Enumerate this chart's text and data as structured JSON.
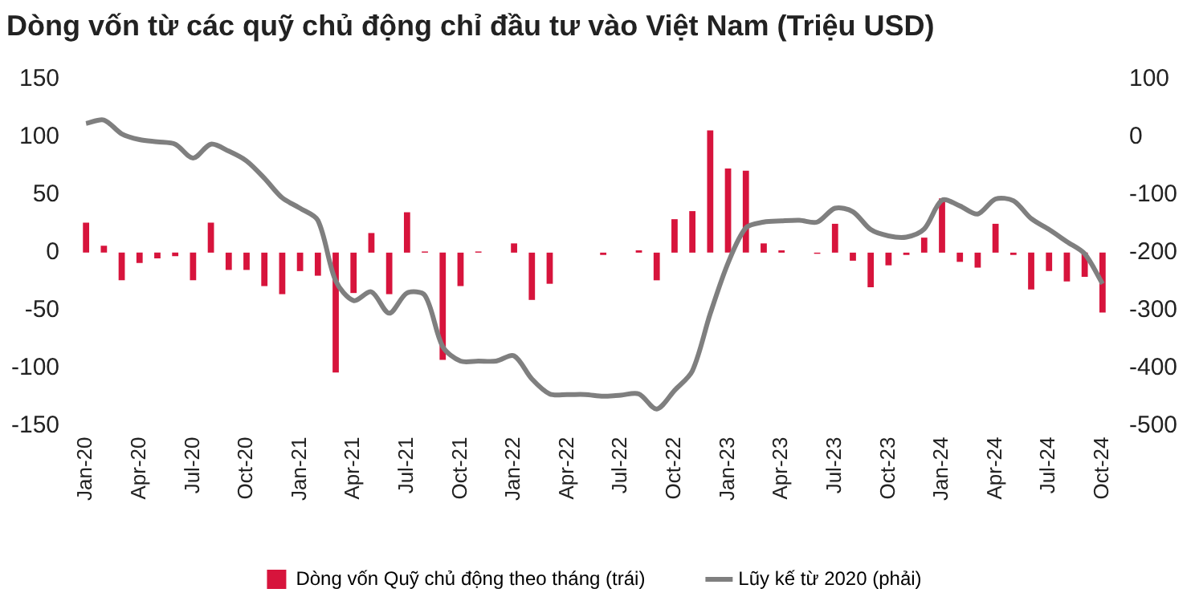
{
  "chart_data": {
    "type": "bar",
    "title": "Dòng vốn từ các quỹ chủ động chỉ đầu tư vào Việt Nam (Triệu USD)",
    "categories": [
      "Jan-20",
      null,
      null,
      "Apr-20",
      null,
      null,
      "Jul-20",
      null,
      null,
      "Oct-20",
      null,
      null,
      "Jan-21",
      null,
      null,
      "Apr-21",
      null,
      null,
      "Jul-21",
      null,
      null,
      "Oct-21",
      null,
      null,
      "Jan-22",
      null,
      null,
      "Apr-22",
      null,
      null,
      "Jul-22",
      null,
      null,
      "Oct-22",
      null,
      null,
      "Jan-23",
      null,
      null,
      "Apr-23",
      null,
      null,
      "Jul-23",
      null,
      null,
      "Oct-23",
      null,
      null,
      "Jan-24",
      null,
      null,
      "Apr-24",
      null,
      null,
      "Jul-24",
      null,
      null,
      "Oct-24"
    ],
    "series": [
      {
        "name": "Dòng vốn Quỹ chủ động theo tháng (trái)",
        "color": "#d7143c",
        "values": [
          26,
          6,
          -24,
          -9,
          -5,
          -3,
          -24,
          26,
          -15,
          -15,
          -29,
          -36,
          -16,
          -20,
          -104,
          -35,
          17,
          -36,
          35,
          1,
          -93,
          -29,
          1,
          0,
          8,
          -41,
          -27,
          0,
          0,
          -2,
          0,
          2,
          -24,
          29,
          36,
          106,
          73,
          71,
          8,
          2,
          0,
          -1,
          25,
          -7,
          -30,
          -11,
          -2,
          13,
          47,
          -8,
          -13,
          25,
          -2,
          -32,
          -16,
          -25,
          -21,
          -52
        ]
      },
      {
        "name": "Lũy kế từ 2020 (phải)",
        "type": "line",
        "axis": "y2",
        "color": "#7f7f7f",
        "values": [
          24,
          30,
          6,
          -4,
          -8,
          -12,
          -36,
          -12,
          -24,
          -41,
          -71,
          -105,
          -123,
          -144,
          -249,
          -283,
          -268,
          -305,
          -270,
          -274,
          -363,
          -388,
          -388,
          -388,
          -379,
          -419,
          -445,
          -446,
          -446,
          -449,
          -447,
          -445,
          -471,
          -439,
          -405,
          -306,
          -218,
          -157,
          -147,
          -145,
          -144,
          -147,
          -123,
          -129,
          -160,
          -171,
          -173,
          -159,
          -109,
          -119,
          -133,
          -107,
          -110,
          -141,
          -160,
          -181,
          -202,
          -254
        ]
      }
    ],
    "ylim": [
      -150,
      150
    ],
    "yticks": [
      -150,
      -100,
      -50,
      0,
      50,
      100,
      150
    ],
    "y2lim": [
      -500,
      100
    ],
    "y2ticks": [
      -500,
      -400,
      -300,
      -200,
      -100,
      0,
      100
    ],
    "grid": false,
    "legend": "bottom",
    "marker": "none",
    "line_style": "solid"
  }
}
